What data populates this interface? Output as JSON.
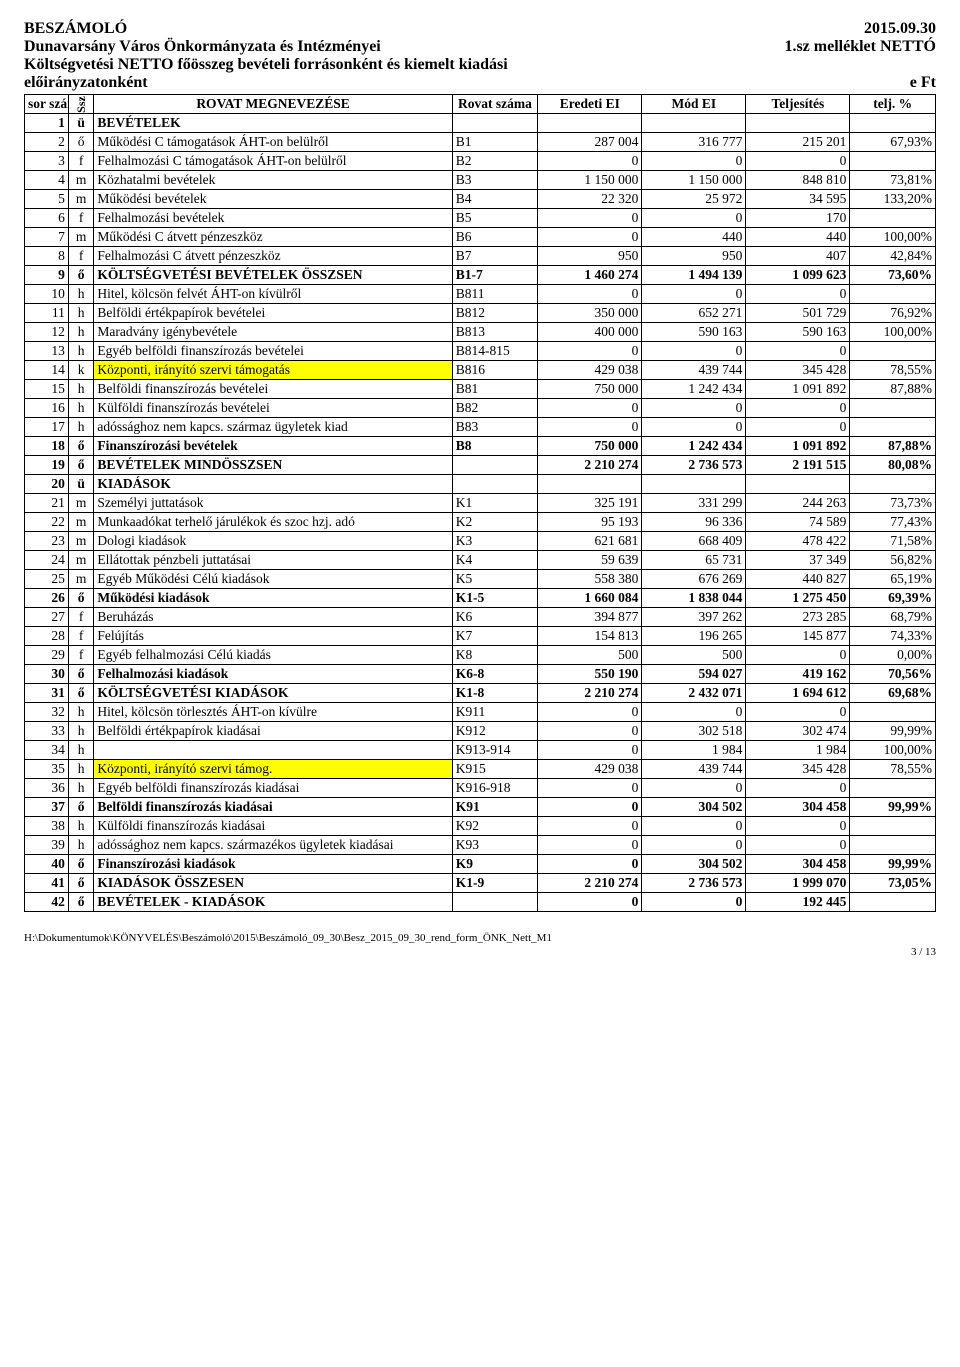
{
  "header": {
    "title_left": "BESZÁMOLÓ",
    "date_right": "2015.09.30",
    "org": "Dunavarsány Város Önkormányzata és Intézményei",
    "attachment": "1.sz melléklet NETTÓ",
    "subtitle": "Költségvetési NETTO főösszeg bevételi forrásonként és kiemelt kiadási",
    "subtitle2_left": "előirányzatonként",
    "unit_right": "e Ft"
  },
  "columns": {
    "sor": "sor szám",
    "ssz": "Ssz",
    "name": "ROVAT MEGNEVEZÉSE",
    "rovat": "Rovat száma",
    "eredeti": "Eredeti EI",
    "mod": "Mód EI",
    "telj": "Teljesítés",
    "pct": "telj. %"
  },
  "rows": [
    {
      "n": "1",
      "s": "ü",
      "name": "BEVÉTELEK",
      "rovat": "",
      "a": "",
      "b": "",
      "c": "",
      "p": "",
      "bold": true
    },
    {
      "n": "2",
      "s": "ő",
      "name": "Működési C támogatások ÁHT-on belülről",
      "rovat": "B1",
      "a": "287 004",
      "b": "316 777",
      "c": "215 201",
      "p": "67,93%"
    },
    {
      "n": "3",
      "s": "f",
      "name": "Felhalmozási C támogatások ÁHT-on belülről",
      "rovat": "B2",
      "a": "0",
      "b": "0",
      "c": "0",
      "p": ""
    },
    {
      "n": "4",
      "s": "m",
      "name": "Közhatalmi bevételek",
      "rovat": "B3",
      "a": "1 150 000",
      "b": "1 150 000",
      "c": "848 810",
      "p": "73,81%"
    },
    {
      "n": "5",
      "s": "m",
      "name": "Működési bevételek",
      "rovat": "B4",
      "a": "22 320",
      "b": "25 972",
      "c": "34 595",
      "p": "133,20%"
    },
    {
      "n": "6",
      "s": "f",
      "name": "Felhalmozási bevételek",
      "rovat": "B5",
      "a": "0",
      "b": "0",
      "c": "170",
      "p": ""
    },
    {
      "n": "7",
      "s": "m",
      "name": "Működési C átvett pénzeszköz",
      "rovat": "B6",
      "a": "0",
      "b": "440",
      "c": "440",
      "p": "100,00%"
    },
    {
      "n": "8",
      "s": "f",
      "name": "Felhalmozási C átvett pénzeszköz",
      "rovat": "B7",
      "a": "950",
      "b": "950",
      "c": "407",
      "p": "42,84%"
    },
    {
      "n": "9",
      "s": "ő",
      "name": "KÖLTSÉGVETÉSI BEVÉTELEK ÖSSZSEN",
      "rovat": "B1-7",
      "a": "1 460 274",
      "b": "1 494 139",
      "c": "1 099 623",
      "p": "73,60%",
      "bold": true
    },
    {
      "n": "10",
      "s": "h",
      "name": "Hitel, kölcsön felvét ÁHT-on kívülről",
      "rovat": "B811",
      "a": "0",
      "b": "0",
      "c": "0",
      "p": ""
    },
    {
      "n": "11",
      "s": "h",
      "name": "Belföldi értékpapírok bevételei",
      "rovat": "B812",
      "a": "350 000",
      "b": "652 271",
      "c": "501 729",
      "p": "76,92%"
    },
    {
      "n": "12",
      "s": "h",
      "name": "Maradvány igénybevétele",
      "rovat": "B813",
      "a": "400 000",
      "b": "590 163",
      "c": "590 163",
      "p": "100,00%"
    },
    {
      "n": "13",
      "s": "h",
      "name": "Egyéb belföldi finanszírozás bevételei",
      "rovat": "B814-815",
      "a": "0",
      "b": "0",
      "c": "0",
      "p": ""
    },
    {
      "n": "14",
      "s": "k",
      "name": "Központi, irányító szervi támogatás",
      "rovat": "B816",
      "a": "429 038",
      "b": "439 744",
      "c": "345 428",
      "p": "78,55%",
      "hl": true
    },
    {
      "n": "15",
      "s": "h",
      "name": "Belföldi finanszírozás bevételei",
      "rovat": "B81",
      "a": "750 000",
      "b": "1 242 434",
      "c": "1 091 892",
      "p": "87,88%"
    },
    {
      "n": "16",
      "s": "h",
      "name": "Külföldi finanszírozás bevételei",
      "rovat": "B82",
      "a": "0",
      "b": "0",
      "c": "0",
      "p": ""
    },
    {
      "n": "17",
      "s": "h",
      "name": "adóssághoz nem kapcs. származ ügyletek kiad",
      "rovat": "B83",
      "a": "0",
      "b": "0",
      "c": "0",
      "p": ""
    },
    {
      "n": "18",
      "s": "ő",
      "name": "Finanszírozási bevételek",
      "rovat": "B8",
      "a": "750 000",
      "b": "1 242 434",
      "c": "1 091 892",
      "p": "87,88%",
      "bold": true
    },
    {
      "n": "19",
      "s": "ő",
      "name": "BEVÉTELEK MINDÖSSZSEN",
      "rovat": "",
      "a": "2 210 274",
      "b": "2 736 573",
      "c": "2 191 515",
      "p": "80,08%",
      "bold": true
    },
    {
      "n": "20",
      "s": "ü",
      "name": "KIADÁSOK",
      "rovat": "",
      "a": "",
      "b": "",
      "c": "",
      "p": "",
      "bold": true
    },
    {
      "n": "21",
      "s": "m",
      "name": "Személyi juttatások",
      "rovat": "K1",
      "a": "325 191",
      "b": "331 299",
      "c": "244 263",
      "p": "73,73%"
    },
    {
      "n": "22",
      "s": "m",
      "name": "Munkaadókat terhelő járulékok és szoc hzj. adó",
      "rovat": "K2",
      "a": "95 193",
      "b": "96 336",
      "c": "74 589",
      "p": "77,43%"
    },
    {
      "n": "23",
      "s": "m",
      "name": "Dologi kiadások",
      "rovat": "K3",
      "a": "621 681",
      "b": "668 409",
      "c": "478 422",
      "p": "71,58%"
    },
    {
      "n": "24",
      "s": "m",
      "name": "Ellátottak pénzbeli juttatásai",
      "rovat": "K4",
      "a": "59 639",
      "b": "65 731",
      "c": "37 349",
      "p": "56,82%"
    },
    {
      "n": "25",
      "s": "m",
      "name": "Egyéb Működési Célú kiadások",
      "rovat": "K5",
      "a": "558 380",
      "b": "676 269",
      "c": "440 827",
      "p": "65,19%"
    },
    {
      "n": "26",
      "s": "ő",
      "name": "Működési kiadások",
      "rovat": "K1-5",
      "a": "1 660 084",
      "b": "1 838 044",
      "c": "1 275 450",
      "p": "69,39%",
      "bold": true
    },
    {
      "n": "27",
      "s": "f",
      "name": "Beruházás",
      "rovat": "K6",
      "a": "394 877",
      "b": "397 262",
      "c": "273 285",
      "p": "68,79%"
    },
    {
      "n": "28",
      "s": "f",
      "name": "Felújítás",
      "rovat": "K7",
      "a": "154 813",
      "b": "196 265",
      "c": "145 877",
      "p": "74,33%"
    },
    {
      "n": "29",
      "s": "f",
      "name": "Egyéb felhalmozási Célú kiadás",
      "rovat": "K8",
      "a": "500",
      "b": "500",
      "c": "0",
      "p": "0,00%"
    },
    {
      "n": "30",
      "s": "ő",
      "name": "Felhalmozási kiadások",
      "rovat": "K6-8",
      "a": "550 190",
      "b": "594 027",
      "c": "419 162",
      "p": "70,56%",
      "bold": true
    },
    {
      "n": "31",
      "s": "ő",
      "name": "KÖLTSÉGVETÉSI KIADÁSOK",
      "rovat": "K1-8",
      "a": "2 210 274",
      "b": "2 432 071",
      "c": "1 694 612",
      "p": "69,68%",
      "bold": true
    },
    {
      "n": "32",
      "s": "h",
      "name": "Hitel, kölcsön törlesztés ÁHT-on kívülre",
      "rovat": "K911",
      "a": "0",
      "b": "0",
      "c": "0",
      "p": ""
    },
    {
      "n": "33",
      "s": "h",
      "name": "Belföldi értékpapírok kiadásai",
      "rovat": "K912",
      "a": "0",
      "b": "302 518",
      "c": "302 474",
      "p": "99,99%"
    },
    {
      "n": "34",
      "s": "h",
      "name": "",
      "rovat": "K913-914",
      "a": "0",
      "b": "1 984",
      "c": "1 984",
      "p": "100,00%"
    },
    {
      "n": "35",
      "s": "h",
      "name": "Központi, irányító szervi támog.",
      "rovat": "K915",
      "a": "429 038",
      "b": "439 744",
      "c": "345 428",
      "p": "78,55%",
      "hl": true
    },
    {
      "n": "36",
      "s": "h",
      "name": "Egyéb belföldi finanszírozás kiadásai",
      "rovat": "K916-918",
      "a": "0",
      "b": "0",
      "c": "0",
      "p": ""
    },
    {
      "n": "37",
      "s": "ő",
      "name": "Belföldi finanszírozás kiadásai",
      "rovat": "K91",
      "a": "0",
      "b": "304 502",
      "c": "304 458",
      "p": "99,99%",
      "bold": true
    },
    {
      "n": "38",
      "s": "h",
      "name": "Külföldi finanszírozás kiadásai",
      "rovat": "K92",
      "a": "0",
      "b": "0",
      "c": "0",
      "p": ""
    },
    {
      "n": "39",
      "s": "h",
      "name": "adóssághoz nem kapcs. származékos ügyletek kiadásai",
      "rovat": "K93",
      "a": "0",
      "b": "0",
      "c": "0",
      "p": ""
    },
    {
      "n": "40",
      "s": "ő",
      "name": "Finanszírozási kiadások",
      "rovat": "K9",
      "a": "0",
      "b": "304 502",
      "c": "304 458",
      "p": "99,99%",
      "bold": true
    },
    {
      "n": "41",
      "s": "ő",
      "name": "KIADÁSOK ÖSSZESEN",
      "rovat": "K1-9",
      "a": "2 210 274",
      "b": "2 736 573",
      "c": "1 999 070",
      "p": "73,05%",
      "bold": true
    },
    {
      "n": "42",
      "s": "ő",
      "name": "BEVÉTELEK - KIADÁSOK",
      "rovat": "",
      "a": "0",
      "b": "0",
      "c": "192 445",
      "p": "",
      "bold": true
    }
  ],
  "footer": {
    "path": "H:\\Dokumentumok\\KÖNYVELÉS\\Beszámoló\\2015\\Beszámoló_09_30\\Besz_2015_09_30_rend_form_ÖNK_Nett_M1",
    "page": "3 / 13"
  },
  "style": {
    "highlight_color": "#ffff00",
    "border_color": "#000000",
    "background": "#ffffff"
  }
}
